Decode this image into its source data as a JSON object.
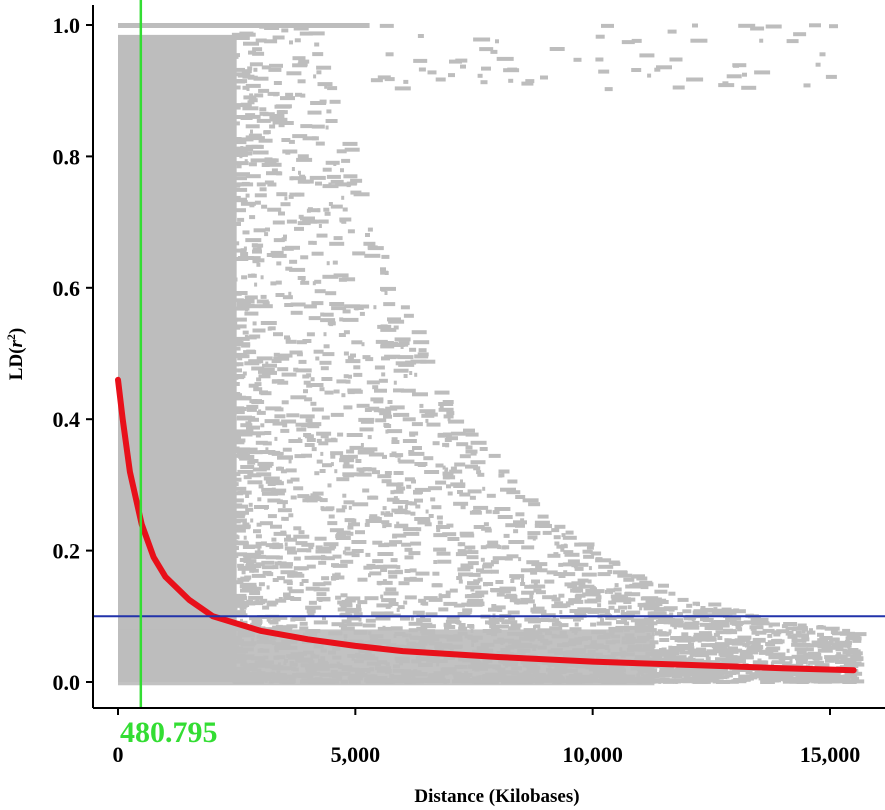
{
  "chart_data": {
    "type": "scatter",
    "title": "",
    "xlabel": "Distance (Kilobases)",
    "ylabel_main": "LD(",
    "ylabel_var": "r",
    "ylabel_sup": "2",
    "ylabel_close": ")",
    "xlim": [
      -600,
      16300
    ],
    "ylim": [
      -0.04,
      1.04
    ],
    "x_ticks": [
      0,
      5000,
      10000,
      15000
    ],
    "x_tick_labels": [
      "0",
      "5,000",
      "10,000",
      "15,000"
    ],
    "y_ticks": [
      0.0,
      0.2,
      0.4,
      0.6,
      0.8,
      1.0
    ],
    "y_tick_labels": [
      "0.0",
      "0.2",
      "0.4",
      "0.6",
      "0.8",
      "1.0"
    ],
    "grid": false,
    "legend": "none",
    "series": [
      {
        "kind": "scatter-points",
        "color": "#bdbdbd",
        "x_range": [
          0,
          15500
        ],
        "y_range": [
          0,
          1.0
        ]
      },
      {
        "kind": "decay-fit",
        "color": "#e8101a",
        "x": [
          0,
          100,
          250,
          500,
          750,
          1000,
          1500,
          2000,
          3000,
          4000,
          5000,
          6000,
          8000,
          10000,
          12000,
          14000,
          15500
        ],
        "y": [
          0.46,
          0.4,
          0.32,
          0.24,
          0.19,
          0.16,
          0.125,
          0.1,
          0.078,
          0.065,
          0.055,
          0.047,
          0.038,
          0.031,
          0.026,
          0.021,
          0.018
        ]
      }
    ],
    "threshold_line": {
      "y": 0.1,
      "color": "#2233aa"
    },
    "cutoff_line": {
      "x": 480.795,
      "color": "#33dd33",
      "label": "480.795"
    }
  }
}
